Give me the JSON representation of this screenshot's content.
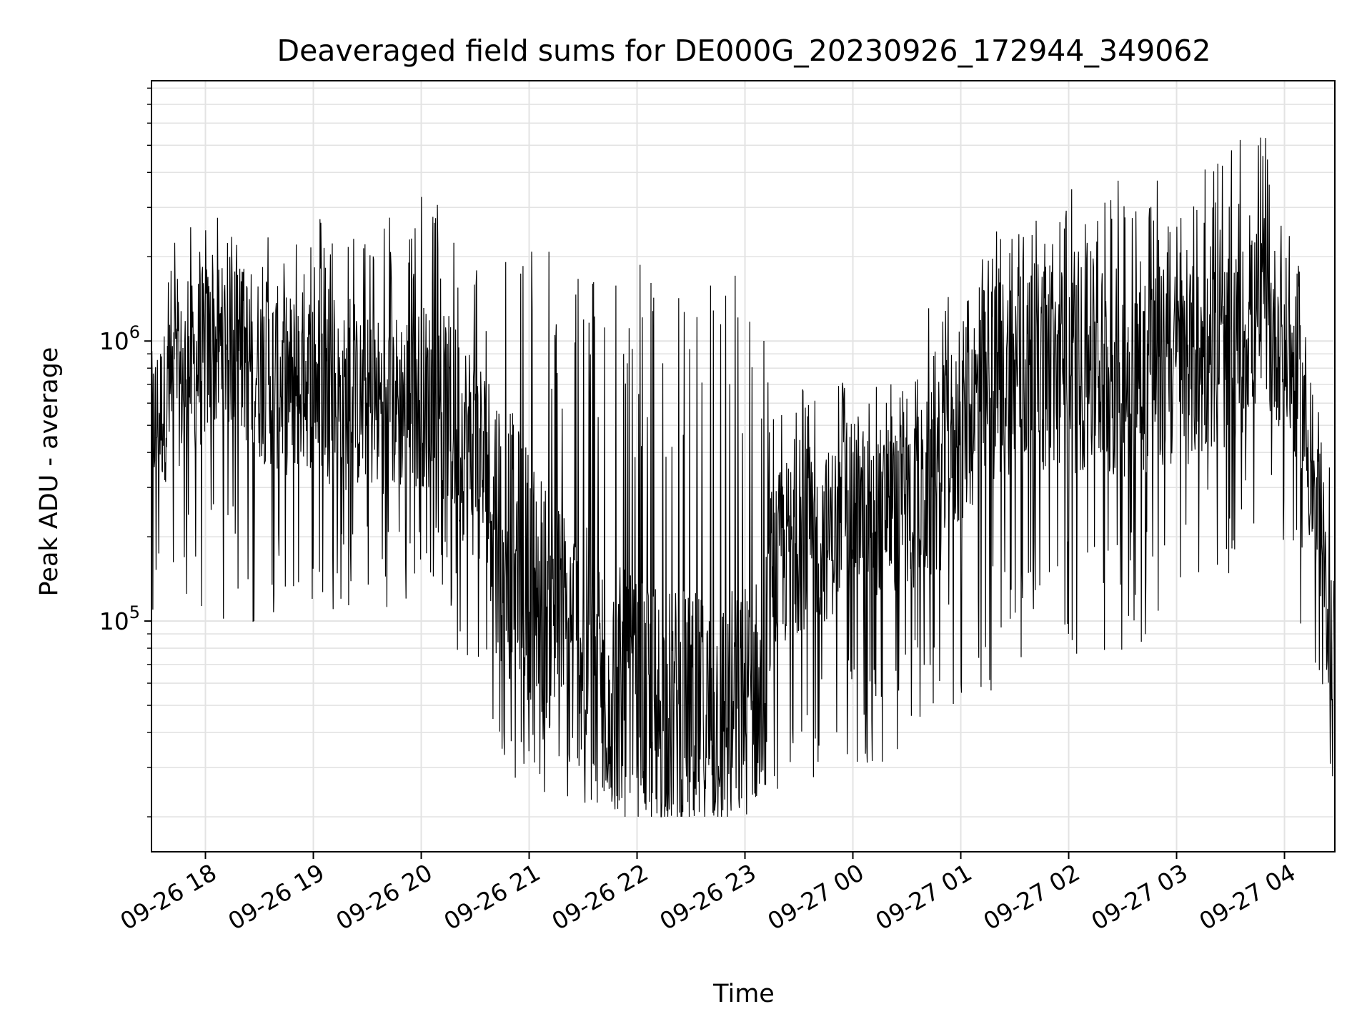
{
  "chart_data": {
    "type": "line",
    "title": "Deaveraged field sums for DE000G_20230926_172944_349062",
    "xlabel": "Time",
    "ylabel": "Peak ADU - average",
    "y_scale": "log",
    "ylim": [
      15000,
      8500000
    ],
    "xlim": [
      "2023-09-26 17:30",
      "2023-09-27 04:28"
    ],
    "grid": true,
    "colors": {
      "line": "#000000",
      "grid": "#e3e3e3",
      "axis": "#000000"
    },
    "x_ticks": [
      "09-26 18",
      "09-26 19",
      "09-26 20",
      "09-26 21",
      "09-26 22",
      "09-26 23",
      "09-27 00",
      "09-27 01",
      "09-27 02",
      "09-27 03",
      "09-27 04"
    ],
    "y_ticks": [
      {
        "base": "10",
        "exp": "5",
        "value": 100000
      },
      {
        "base": "10",
        "exp": "6",
        "value": 1000000
      }
    ],
    "series": [
      {
        "x": [
          "2023-09-26 17:30",
          "2023-09-26 17:45",
          "2023-09-26 18:00",
          "2023-09-26 18:15",
          "2023-09-26 18:30",
          "2023-09-26 18:45",
          "2023-09-26 19:00",
          "2023-09-26 19:15",
          "2023-09-26 19:30",
          "2023-09-26 19:45",
          "2023-09-26 20:00",
          "2023-09-26 20:15",
          "2023-09-26 20:30",
          "2023-09-26 20:45",
          "2023-09-26 21:00",
          "2023-09-26 21:15",
          "2023-09-26 21:30",
          "2023-09-26 21:45",
          "2023-09-26 22:00",
          "2023-09-26 22:15",
          "2023-09-26 22:30",
          "2023-09-26 22:45",
          "2023-09-26 23:00",
          "2023-09-26 23:10",
          "2023-09-26 23:15",
          "2023-09-26 23:30",
          "2023-09-26 23:45",
          "2023-09-27 00:00",
          "2023-09-27 00:15",
          "2023-09-27 00:30",
          "2023-09-27 00:45",
          "2023-09-27 01:00",
          "2023-09-27 01:15",
          "2023-09-27 01:30",
          "2023-09-27 01:45",
          "2023-09-27 02:00",
          "2023-09-27 02:15",
          "2023-09-27 02:30",
          "2023-09-27 02:45",
          "2023-09-27 03:00",
          "2023-09-27 03:15",
          "2023-09-27 03:30",
          "2023-09-27 03:45",
          "2023-09-27 04:00",
          "2023-09-27 04:10",
          "2023-09-27 04:20",
          "2023-09-27 04:28"
        ],
        "center": [
          500000,
          700000,
          900000,
          1000000,
          800000,
          700000,
          750000,
          600000,
          600000,
          600000,
          650000,
          550000,
          400000,
          250000,
          150000,
          100000,
          80000,
          60000,
          50000,
          50000,
          45000,
          45000,
          50000,
          60000,
          150000,
          200000,
          200000,
          250000,
          250000,
          250000,
          300000,
          500000,
          700000,
          800000,
          800000,
          800000,
          800000,
          750000,
          800000,
          800000,
          850000,
          900000,
          1200000,
          1000000,
          600000,
          150000,
          80000
        ],
        "upper": [
          1500000,
          2500000,
          3000000,
          2500000,
          2500000,
          3000000,
          3000000,
          2500000,
          2500000,
          3000000,
          3500000,
          3000000,
          3000000,
          2500000,
          2500000,
          2000000,
          2000000,
          2000000,
          2000000,
          2000000,
          2000000,
          2000000,
          2000000,
          1500000,
          800000,
          800000,
          700000,
          750000,
          700000,
          800000,
          1500000,
          2000000,
          2500000,
          2500000,
          3000000,
          3500000,
          4000000,
          4000000,
          4000000,
          4000000,
          4500000,
          5000000,
          6000000,
          4000000,
          1500000,
          500000,
          300000
        ],
        "lower": [
          100000,
          120000,
          100000,
          100000,
          80000,
          100000,
          100000,
          90000,
          100000,
          100000,
          120000,
          80000,
          50000,
          30000,
          25000,
          20000,
          20000,
          20000,
          20000,
          20000,
          20000,
          20000,
          20000,
          25000,
          25000,
          25000,
          30000,
          30000,
          30000,
          35000,
          40000,
          50000,
          50000,
          60000,
          60000,
          70000,
          70000,
          70000,
          80000,
          100000,
          120000,
          150000,
          200000,
          150000,
          80000,
          40000,
          20000
        ]
      }
    ]
  }
}
